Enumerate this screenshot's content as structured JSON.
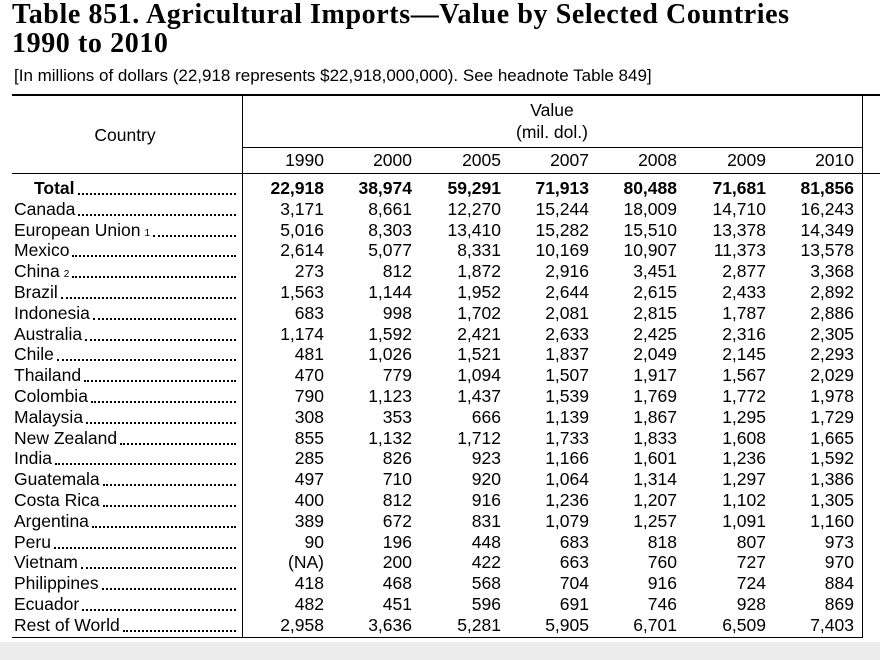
{
  "header": {
    "title": "Table 851. Agricultural Imports—Value by Selected Countries",
    "title_line2": "1990 to 2010",
    "subtitle": "[In millions of dollars (22,918 represents $22,918,000,000). See headnote Table 849]"
  },
  "table": {
    "country_header": "Country",
    "value_header": "Value",
    "unit_header": "(mil. dol.)",
    "years": [
      "1990",
      "2000",
      "2005",
      "2007",
      "2008",
      "2009",
      "2010"
    ],
    "rows": [
      {
        "country": "Total",
        "values": [
          "22,918",
          "38,974",
          "59,291",
          "71,913",
          "80,488",
          "71,681",
          "81,856"
        ]
      },
      {
        "country": "Canada",
        "values": [
          "3,171",
          "8,661",
          "12,270",
          "15,244",
          "18,009",
          "14,710",
          "16,243"
        ]
      },
      {
        "country": "European Union",
        "note": "1",
        "values": [
          "5,016",
          "8,303",
          "13,410",
          "15,282",
          "15,510",
          "13,378",
          "14,349"
        ]
      },
      {
        "country": "Mexico",
        "values": [
          "2,614",
          "5,077",
          "8,331",
          "10,169",
          "10,907",
          "11,373",
          "13,578"
        ]
      },
      {
        "country": "China",
        "note": "2",
        "values": [
          "273",
          "812",
          "1,872",
          "2,916",
          "3,451",
          "2,877",
          "3,368"
        ]
      },
      {
        "country": "Brazil",
        "values": [
          "1,563",
          "1,144",
          "1,952",
          "2,644",
          "2,615",
          "2,433",
          "2,892"
        ]
      },
      {
        "country": "Indonesia",
        "values": [
          "683",
          "998",
          "1,702",
          "2,081",
          "2,815",
          "1,787",
          "2,886"
        ]
      },
      {
        "country": "Australia",
        "values": [
          "1,174",
          "1,592",
          "2,421",
          "2,633",
          "2,425",
          "2,316",
          "2,305"
        ]
      },
      {
        "country": "Chile",
        "values": [
          "481",
          "1,026",
          "1,521",
          "1,837",
          "2,049",
          "2,145",
          "2,293"
        ]
      },
      {
        "country": "Thailand",
        "values": [
          "470",
          "779",
          "1,094",
          "1,507",
          "1,917",
          "1,567",
          "2,029"
        ]
      },
      {
        "country": "Colombia",
        "values": [
          "790",
          "1,123",
          "1,437",
          "1,539",
          "1,769",
          "1,772",
          "1,978"
        ]
      },
      {
        "country": "Malaysia",
        "values": [
          "308",
          "353",
          "666",
          "1,139",
          "1,867",
          "1,295",
          "1,729"
        ]
      },
      {
        "country": "New Zealand",
        "values": [
          "855",
          "1,132",
          "1,712",
          "1,733",
          "1,833",
          "1,608",
          "1,665"
        ]
      },
      {
        "country": "India",
        "values": [
          "285",
          "826",
          "923",
          "1,166",
          "1,601",
          "1,236",
          "1,592"
        ]
      },
      {
        "country": "Guatemala",
        "values": [
          "497",
          "710",
          "920",
          "1,064",
          "1,314",
          "1,297",
          "1,386"
        ]
      },
      {
        "country": "Costa Rica",
        "values": [
          "400",
          "812",
          "916",
          "1,236",
          "1,207",
          "1,102",
          "1,305"
        ]
      },
      {
        "country": "Argentina",
        "values": [
          "389",
          "672",
          "831",
          "1,079",
          "1,257",
          "1,091",
          "1,160"
        ]
      },
      {
        "country": "Peru",
        "values": [
          "90",
          "196",
          "448",
          "683",
          "818",
          "807",
          "973"
        ]
      },
      {
        "country": "Vietnam",
        "values": [
          "(NA)",
          "200",
          "422",
          "663",
          "760",
          "727",
          "970"
        ]
      },
      {
        "country": "Philippines",
        "values": [
          "418",
          "468",
          "568",
          "704",
          "916",
          "724",
          "884"
        ]
      },
      {
        "country": "Ecuador",
        "values": [
          "482",
          "451",
          "596",
          "691",
          "746",
          "928",
          "869"
        ]
      },
      {
        "country": "Rest of World",
        "values": [
          "2,958",
          "3,636",
          "5,281",
          "5,905",
          "6,701",
          "6,509",
          "7,403"
        ]
      }
    ]
  }
}
